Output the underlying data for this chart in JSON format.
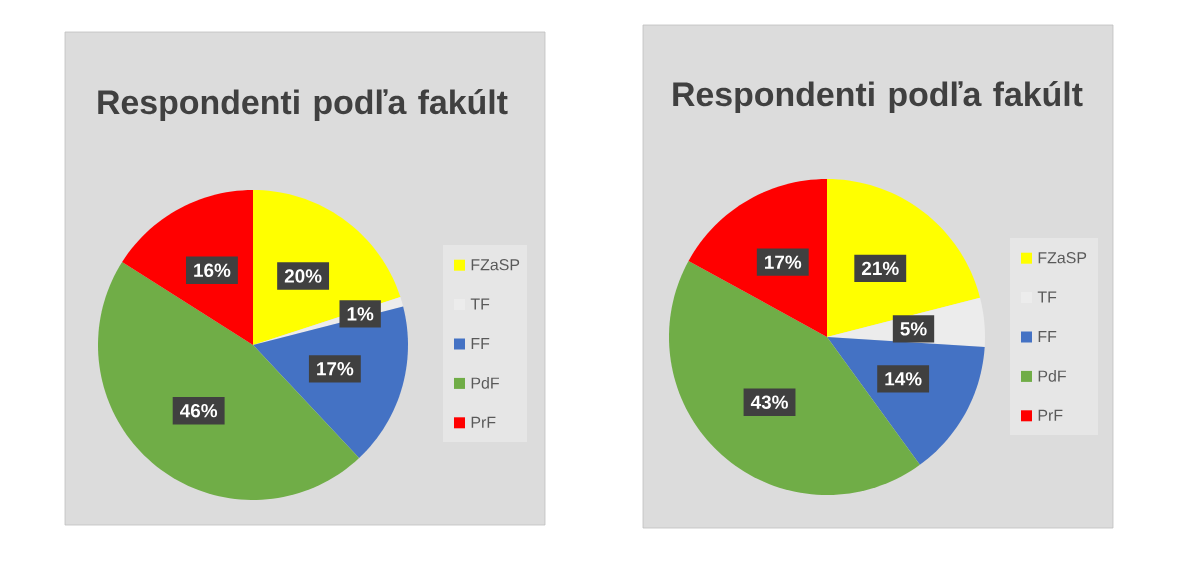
{
  "chart_data": [
    {
      "type": "pie",
      "title": "Respondenti podľa fakúlt",
      "categories": [
        "FZaSP",
        "TF",
        "FF",
        "PdF",
        "PrF"
      ],
      "values": [
        20,
        1,
        17,
        46,
        16
      ],
      "value_labels": [
        "20%",
        "1%",
        "17%",
        "46%",
        "16%"
      ],
      "colors": [
        "#ffff00",
        "#ececec",
        "#4472c4",
        "#70ad47",
        "#ff0000"
      ],
      "legend": "right"
    },
    {
      "type": "pie",
      "title": "Respondenti podľa fakúlt",
      "categories": [
        "FZaSP",
        "TF",
        "FF",
        "PdF",
        "PrF"
      ],
      "values": [
        21,
        5,
        14,
        43,
        17
      ],
      "value_labels": [
        "21%",
        "5%",
        "14%",
        "43%",
        "17%"
      ],
      "colors": [
        "#ffff00",
        "#ececec",
        "#4472c4",
        "#70ad47",
        "#ff0000"
      ],
      "legend": "right"
    }
  ]
}
